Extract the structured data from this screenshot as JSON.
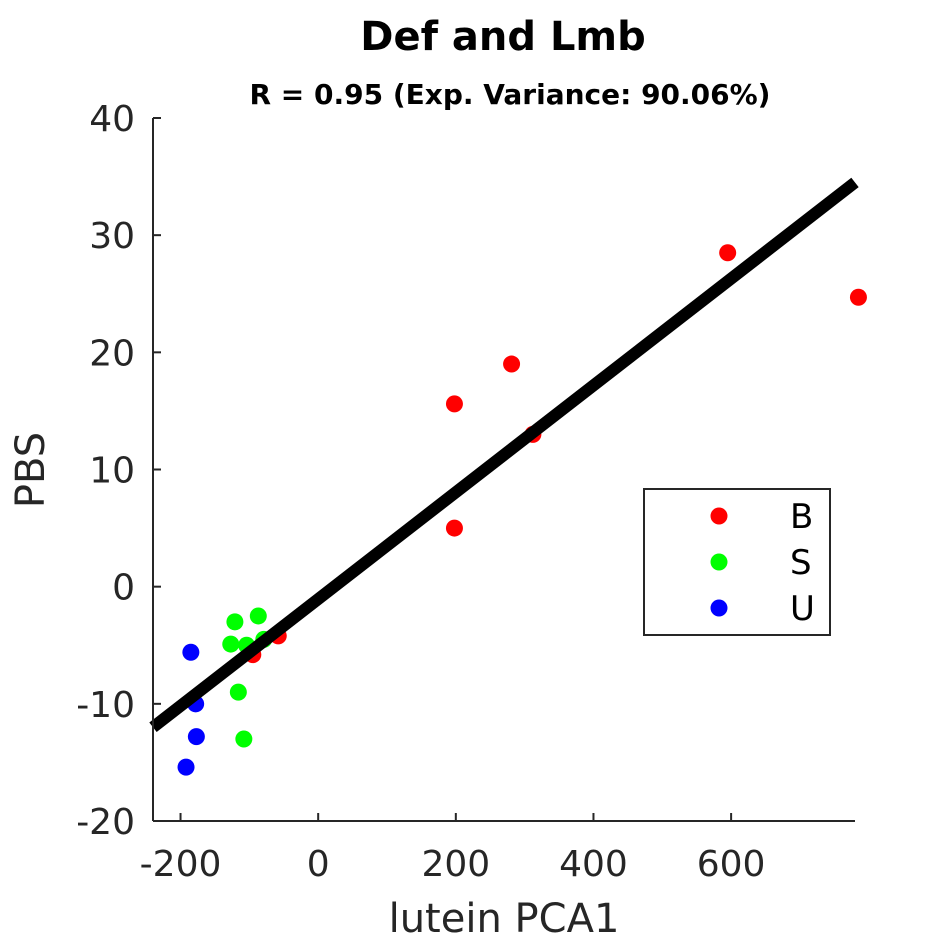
{
  "chart_data": {
    "type": "scatter",
    "title": "Def and Lmb",
    "subtitle": "R = 0.95 (Exp. Variance: 90.06%)",
    "xlabel": "lutein PCA1",
    "ylabel": "PBS",
    "xlim": [
      -240,
      780
    ],
    "ylim": [
      -20,
      40
    ],
    "xticks": [
      -200,
      0,
      200,
      400,
      600
    ],
    "xtick_labels": [
      "-200",
      "0",
      "200",
      "400",
      "600"
    ],
    "yticks": [
      -20,
      -10,
      0,
      10,
      20,
      30,
      40
    ],
    "ytick_labels": [
      "-20",
      "-10",
      "0",
      "10",
      "20",
      "30",
      "40"
    ],
    "grid": false,
    "legend_position": "right",
    "series": [
      {
        "name": "B",
        "color": "#ff0000",
        "points": [
          [
            595,
            28.5
          ],
          [
            785,
            24.7
          ],
          [
            281,
            19
          ],
          [
            198,
            15.6
          ],
          [
            312,
            13
          ],
          [
            198,
            5
          ],
          [
            -58,
            -4.2
          ],
          [
            -95,
            -5.8
          ]
        ]
      },
      {
        "name": "S",
        "color": "#00ff00",
        "points": [
          [
            -87,
            -2.5
          ],
          [
            -121,
            -3
          ],
          [
            -127,
            -4.9
          ],
          [
            -104,
            -5
          ],
          [
            -79,
            -4.5
          ],
          [
            -116,
            -9
          ],
          [
            -108,
            -13
          ]
        ]
      },
      {
        "name": "U",
        "color": "#0000ff",
        "points": [
          [
            -185,
            -5.6
          ],
          [
            -178,
            -10
          ],
          [
            -177,
            -12.8
          ],
          [
            -192,
            -15.4
          ]
        ]
      }
    ],
    "fit_line": {
      "color": "#000000",
      "points": [
        [
          -240,
          -12
        ],
        [
          780,
          34.5
        ]
      ]
    }
  }
}
